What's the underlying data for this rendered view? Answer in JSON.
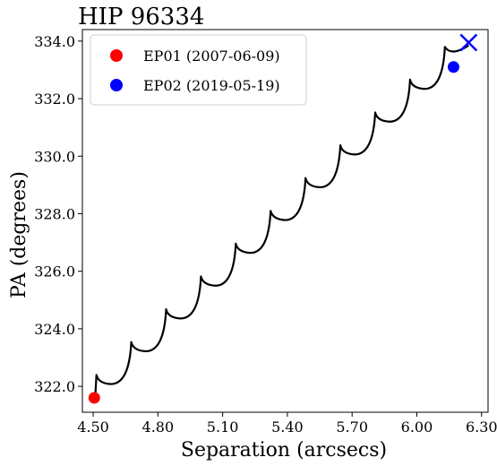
{
  "chart_data": {
    "type": "line",
    "title": "HIP 96334",
    "xlabel": "Separation (arcsecs)",
    "ylabel": "PA (degrees)",
    "xlim": [
      4.45,
      6.33
    ],
    "ylim": [
      321.1,
      334.4
    ],
    "xticks": [
      4.5,
      4.8,
      5.1,
      5.4,
      5.7,
      6.0,
      6.3
    ],
    "xtick_labels": [
      "4.50",
      "4.80",
      "5.10",
      "5.40",
      "5.70",
      "6.00",
      "6.30"
    ],
    "yticks": [
      322,
      324,
      326,
      328,
      330,
      332,
      334
    ],
    "ytick_labels": [
      "322.0",
      "324.0",
      "326.0",
      "328.0",
      "330.0",
      "332.0",
      "334.0"
    ],
    "grid": false,
    "legend_position": "top-left",
    "background_track": {
      "color": "#000000",
      "points": [
        {
          "x": 4.51,
          "y": 321.7
        },
        {
          "x": 4.515,
          "y": 322.4
        },
        {
          "x": 6.13,
          "y": 333.8
        },
        {
          "x": 6.24,
          "y": 333.85
        }
      ]
    },
    "final_position_marker": {
      "x": 6.24,
      "y": 333.95,
      "color": "#0000ff",
      "shape": "x"
    },
    "series": [
      {
        "name": "EP01 (2007-06-09)",
        "x": [
          4.505
        ],
        "y": [
          321.6
        ],
        "color": "#ff0000",
        "marker": "circle"
      },
      {
        "name": "EP02 (2019-05-19)",
        "x": [
          6.17
        ],
        "y": [
          333.1
        ],
        "color": "#0000ff",
        "marker": "circle"
      }
    ]
  }
}
